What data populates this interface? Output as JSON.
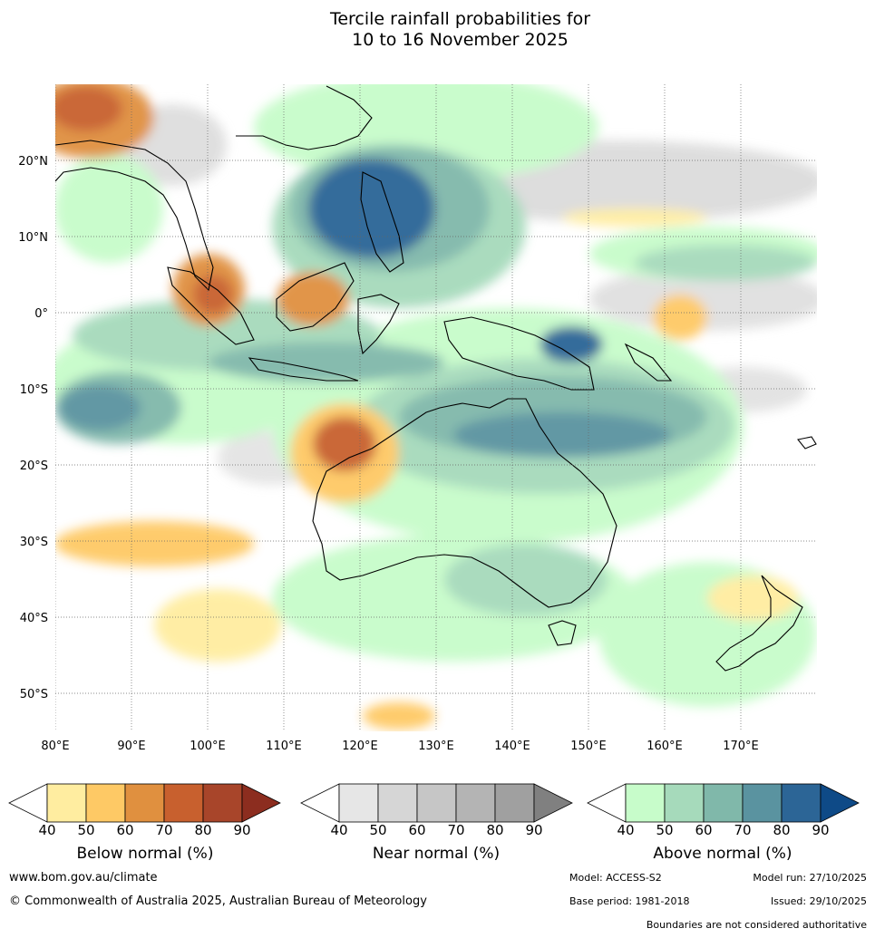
{
  "title": {
    "line1": "Tercile rainfall probabilities for",
    "line2": "10 to 16 November 2025"
  },
  "map": {
    "lon_labels": [
      "80°E",
      "90°E",
      "100°E",
      "110°E",
      "120°E",
      "130°E",
      "140°E",
      "150°E",
      "160°E",
      "170°E"
    ],
    "lat_labels": [
      "20°N",
      "10°N",
      "0°",
      "10°S",
      "20°S",
      "30°S",
      "40°S",
      "50°S"
    ],
    "lon_values": [
      80,
      90,
      100,
      110,
      120,
      130,
      140,
      150,
      160,
      170
    ],
    "lat_values": [
      20,
      10,
      0,
      -10,
      -20,
      -30,
      -40,
      -50
    ],
    "extent": {
      "lon_min": 80,
      "lon_max": 180,
      "lat_min": -55,
      "lat_max": 30
    }
  },
  "legends": [
    {
      "title": "Below normal (%)",
      "ticks": [
        "40",
        "50",
        "60",
        "70",
        "80",
        "90"
      ],
      "colors": [
        "#ffffff",
        "#ffeda0",
        "#fec965",
        "#e0903f",
        "#c8602e",
        "#a8452a",
        "#8c2d1f"
      ]
    },
    {
      "title": "Near normal (%)",
      "ticks": [
        "40",
        "50",
        "60",
        "70",
        "80",
        "90"
      ],
      "colors": [
        "#ffffff",
        "#e6e6e6",
        "#d6d6d6",
        "#c6c6c6",
        "#b4b4b4",
        "#a0a0a0",
        "#808080"
      ]
    },
    {
      "title": "Above normal (%)",
      "ticks": [
        "40",
        "50",
        "60",
        "70",
        "80",
        "90"
      ],
      "colors": [
        "#ffffff",
        "#c7fcca",
        "#a6dabb",
        "#80b8aa",
        "#5a93a0",
        "#2c6596",
        "#0e4a87"
      ]
    }
  ],
  "footer": {
    "url": "www.bom.gov.au/climate",
    "copyright": "© Commonwealth of Australia 2025, Australian Bureau of Meteorology",
    "model": "Model: ACCESS-S2",
    "model_run": "Model run: 27/10/2025",
    "base_period": "Base period: 1981-2018",
    "issued": "Issued: 29/10/2025",
    "disclaimer": "Boundaries are not considered authoritative"
  }
}
